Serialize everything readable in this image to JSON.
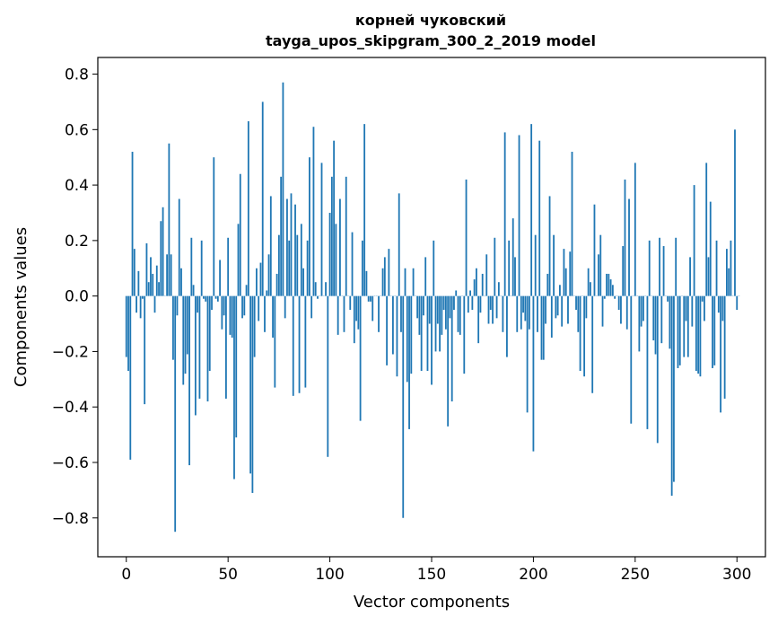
{
  "chart_data": {
    "type": "bar",
    "title": "корней чуковский",
    "subtitle": "tayga_upos_skipgram_300_2_2019 model",
    "xlabel": "Vector components",
    "ylabel": "Components values",
    "xlim": [
      -14,
      314
    ],
    "ylim": [
      -0.94,
      0.86
    ],
    "xticks": [
      0,
      50,
      100,
      150,
      200,
      250,
      300
    ],
    "yticks": [
      -0.8,
      -0.6,
      -0.4,
      -0.2,
      0.0,
      0.2,
      0.4,
      0.6,
      0.8
    ],
    "ytick_labels": [
      "−0.8",
      "−0.6",
      "−0.4",
      "−0.2",
      "0.0",
      "0.2",
      "0.4",
      "0.6",
      "0.8"
    ],
    "bar_color": "#1f77b4",
    "x_start": 0,
    "values": [
      -0.22,
      -0.27,
      -0.59,
      0.52,
      0.17,
      -0.06,
      0.09,
      -0.08,
      -0.01,
      -0.39,
      0.19,
      0.05,
      0.14,
      0.08,
      -0.06,
      0.11,
      0.05,
      0.27,
      0.32,
      0.0,
      0.15,
      0.55,
      0.15,
      -0.23,
      -0.85,
      -0.07,
      0.35,
      0.1,
      -0.32,
      -0.28,
      -0.21,
      -0.61,
      0.21,
      0.04,
      -0.43,
      -0.06,
      -0.37,
      0.2,
      -0.01,
      -0.02,
      -0.38,
      -0.27,
      -0.05,
      0.5,
      -0.01,
      -0.02,
      0.13,
      -0.12,
      -0.07,
      -0.37,
      0.21,
      -0.14,
      -0.15,
      -0.66,
      -0.51,
      0.26,
      0.44,
      -0.08,
      -0.07,
      0.04,
      0.63,
      -0.64,
      -0.71,
      -0.22,
      0.1,
      -0.09,
      0.12,
      0.7,
      -0.13,
      0.02,
      0.15,
      0.36,
      -0.15,
      -0.33,
      0.08,
      0.22,
      0.43,
      0.77,
      -0.08,
      0.35,
      0.2,
      0.37,
      -0.36,
      0.33,
      0.22,
      -0.35,
      0.26,
      0.1,
      -0.33,
      0.2,
      0.5,
      -0.08,
      0.61,
      0.05,
      -0.01,
      0.0,
      0.48,
      0.0,
      0.05,
      -0.58,
      0.3,
      0.43,
      0.56,
      0.26,
      -0.14,
      0.35,
      0.0,
      -0.13,
      0.43,
      0.0,
      -0.05,
      0.23,
      -0.17,
      -0.09,
      -0.12,
      -0.45,
      0.2,
      0.62,
      0.09,
      -0.02,
      -0.02,
      -0.09,
      0.0,
      0.0,
      -0.13,
      0.0,
      0.1,
      0.14,
      -0.25,
      0.17,
      0.0,
      -0.21,
      0.0,
      -0.29,
      0.37,
      -0.13,
      -0.8,
      0.1,
      -0.31,
      -0.48,
      -0.28,
      0.1,
      0.0,
      -0.08,
      -0.14,
      -0.27,
      -0.07,
      0.14,
      -0.27,
      -0.1,
      -0.32,
      0.2,
      -0.2,
      -0.1,
      -0.2,
      -0.14,
      -0.05,
      -0.12,
      -0.47,
      -0.08,
      -0.38,
      -0.05,
      0.02,
      -0.13,
      -0.14,
      0.0,
      -0.28,
      0.42,
      -0.06,
      0.02,
      -0.05,
      0.06,
      0.1,
      -0.17,
      -0.06,
      0.08,
      0.0,
      0.15,
      -0.1,
      -0.05,
      -0.1,
      0.21,
      -0.08,
      0.05,
      0.0,
      -0.13,
      0.59,
      -0.22,
      0.2,
      0.0,
      0.28,
      0.14,
      -0.13,
      0.58,
      -0.12,
      -0.06,
      -0.09,
      -0.42,
      -0.12,
      0.62,
      -0.56,
      0.22,
      -0.13,
      0.56,
      -0.23,
      -0.23,
      -0.1,
      0.08,
      0.36,
      -0.15,
      0.22,
      -0.08,
      -0.07,
      0.04,
      -0.11,
      0.17,
      0.1,
      -0.1,
      0.16,
      0.52,
      0.0,
      -0.05,
      -0.13,
      -0.27,
      0.0,
      -0.29,
      -0.08,
      0.1,
      0.05,
      -0.35,
      0.33,
      0.0,
      0.15,
      0.22,
      -0.11,
      -0.01,
      0.08,
      0.08,
      0.06,
      0.04,
      -0.01,
      0.0,
      -0.05,
      -0.1,
      0.18,
      0.42,
      -0.12,
      0.35,
      -0.46,
      0.0,
      0.48,
      0.0,
      -0.2,
      -0.11,
      -0.09,
      0.0,
      -0.48,
      0.2,
      0.0,
      -0.16,
      -0.21,
      -0.53,
      0.21,
      -0.17,
      0.18,
      0.0,
      -0.02,
      -0.19,
      -0.72,
      -0.67,
      0.21,
      -0.26,
      -0.25,
      0.0,
      -0.22,
      -0.09,
      -0.22,
      0.14,
      -0.11,
      0.4,
      -0.27,
      -0.28,
      -0.29,
      -0.02,
      -0.09,
      0.48,
      0.14,
      0.34,
      -0.26,
      -0.25,
      0.2,
      -0.06,
      -0.42,
      -0.09,
      -0.37,
      0.17,
      0.1,
      0.2,
      0.0,
      0.6,
      -0.05,
      0.0
    ]
  }
}
